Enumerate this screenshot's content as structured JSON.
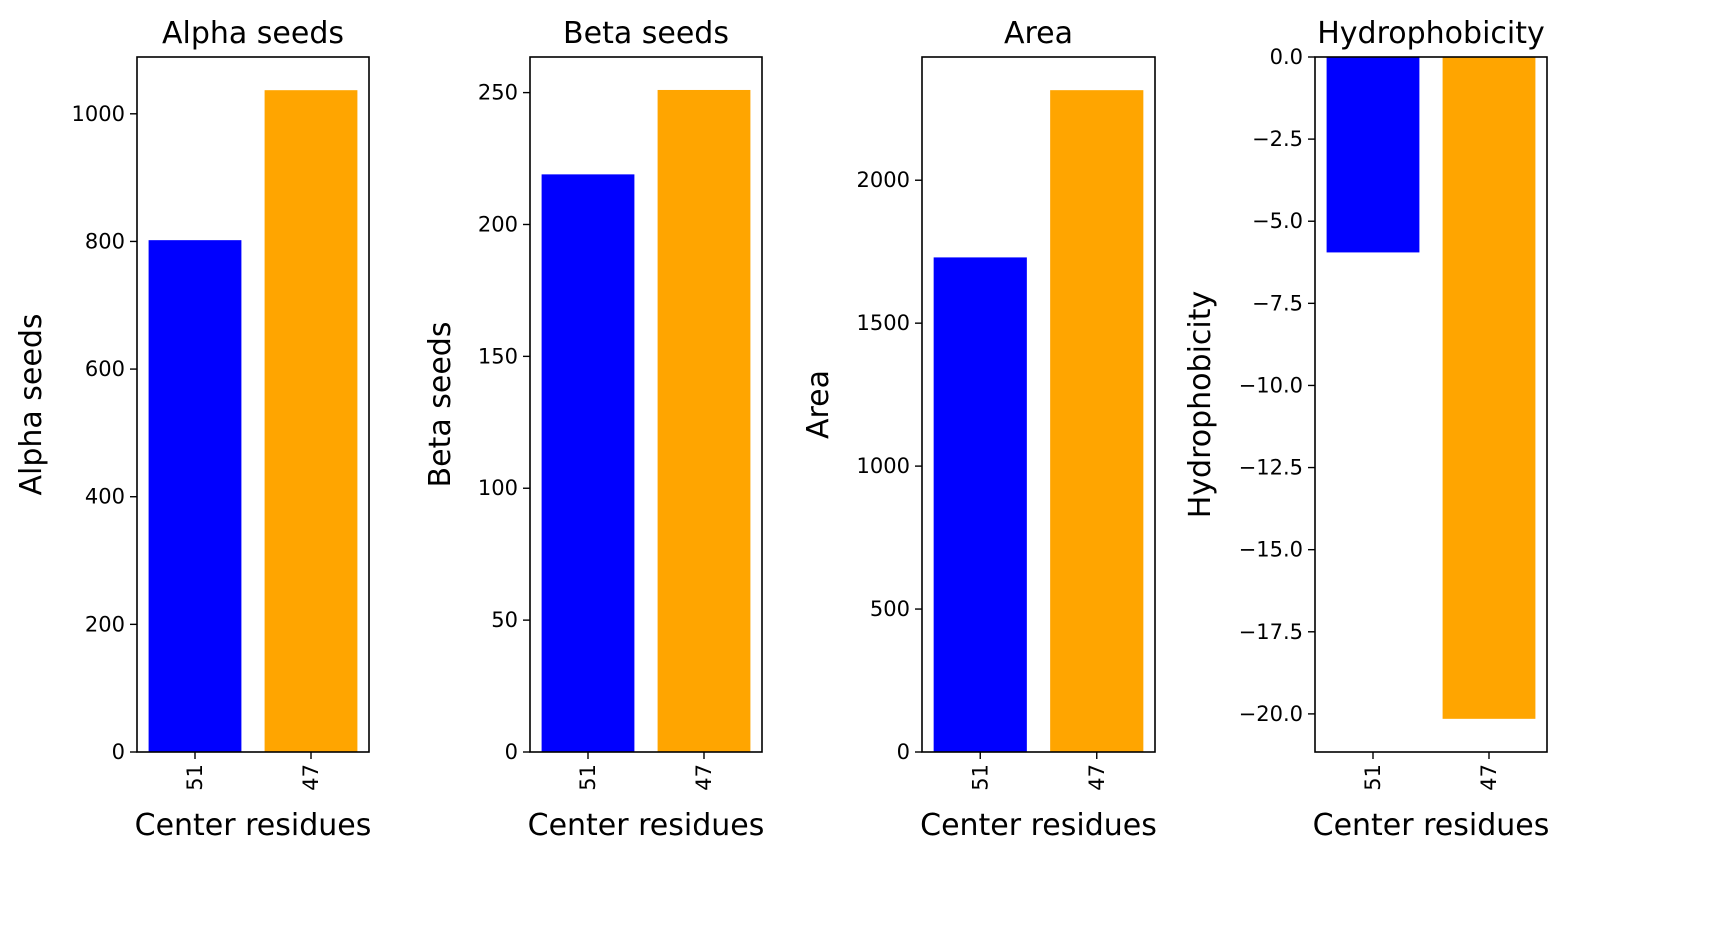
{
  "chart_data": [
    {
      "type": "bar",
      "title": "Alpha seeds",
      "xlabel": "Center residues",
      "ylabel": "Alpha seeds",
      "categories": [
        "51",
        "47"
      ],
      "values": [
        802,
        1037
      ],
      "colors": [
        "#0000ff",
        "#ffa500"
      ],
      "ylim": [
        0,
        1089
      ],
      "yticks": [
        0,
        200,
        400,
        600,
        800,
        1000
      ],
      "ytick_labels": [
        "0",
        "200",
        "400",
        "600",
        "800",
        "1000"
      ]
    },
    {
      "type": "bar",
      "title": "Beta seeds",
      "xlabel": "Center residues",
      "ylabel": "Beta seeds",
      "categories": [
        "51",
        "47"
      ],
      "values": [
        219,
        251
      ],
      "colors": [
        "#0000ff",
        "#ffa500"
      ],
      "ylim": [
        0,
        263.5
      ],
      "yticks": [
        0,
        50,
        100,
        150,
        200,
        250
      ],
      "ytick_labels": [
        "0",
        "50",
        "100",
        "150",
        "200",
        "250"
      ]
    },
    {
      "type": "bar",
      "title": "Area",
      "xlabel": "Center residues",
      "ylabel": "Area",
      "categories": [
        "51",
        "47"
      ],
      "values": [
        1730,
        2315
      ],
      "colors": [
        "#0000ff",
        "#ffa500"
      ],
      "ylim": [
        0,
        2431
      ],
      "yticks": [
        0,
        500,
        1000,
        1500,
        2000
      ],
      "ytick_labels": [
        "0",
        "500",
        "1000",
        "1500",
        "2000"
      ]
    },
    {
      "type": "bar",
      "title": "Hydrophobicity",
      "xlabel": "Center residues",
      "ylabel": "Hydrophobicity",
      "categories": [
        "51",
        "47"
      ],
      "values": [
        -5.95,
        -20.15
      ],
      "colors": [
        "#0000ff",
        "#ffa500"
      ],
      "ylim": [
        -21.16,
        0
      ],
      "yticks": [
        0,
        -2.5,
        -5,
        -7.5,
        -10,
        -12.5,
        -15,
        -17.5,
        -20
      ],
      "ytick_labels": [
        "0.0",
        "−2.5",
        "−5.0",
        "−7.5",
        "−10.0",
        "−12.5",
        "−15.0",
        "−17.5",
        "−20.0"
      ]
    }
  ]
}
